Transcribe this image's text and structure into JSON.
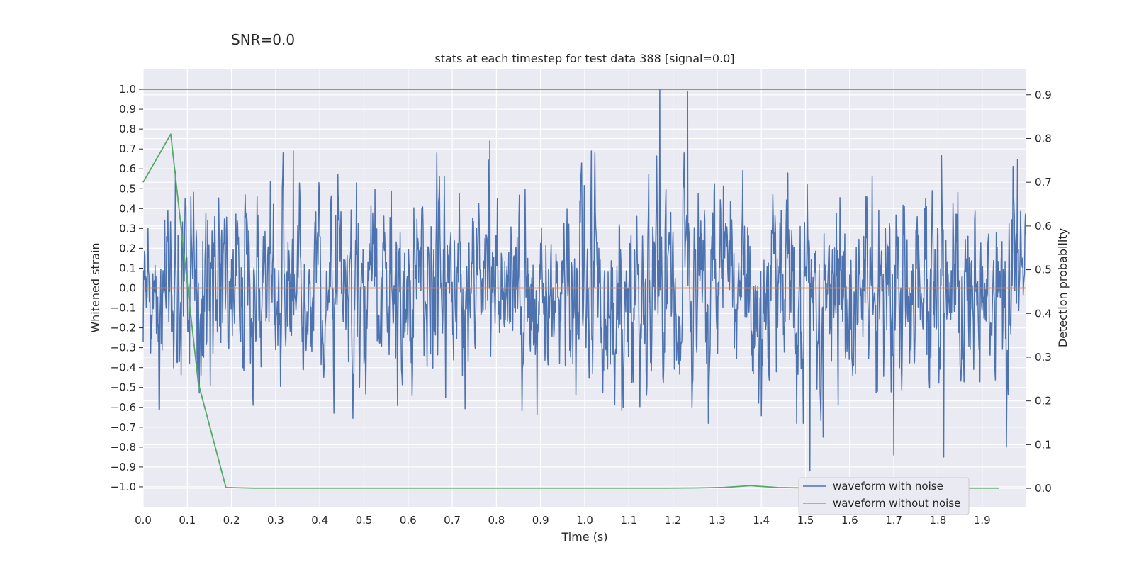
{
  "suptitle": "SNR=0.0",
  "chart_data": {
    "type": "line",
    "title": "stats at each timestep for test data 388 [signal=0.0]",
    "xlabel": "Time (s)",
    "ylabel": "Whitened strain",
    "y2label": "Detection probability",
    "xlim": [
      0.0,
      2.0
    ],
    "ylim": [
      -1.1,
      1.1
    ],
    "y2lim": [
      -0.042,
      0.958
    ],
    "xticks": [
      0.0,
      0.1,
      0.2,
      0.3,
      0.4,
      0.5,
      0.6,
      0.7,
      0.8,
      0.9,
      1.0,
      1.1,
      1.2,
      1.3,
      1.4,
      1.5,
      1.6,
      1.7,
      1.8,
      1.9
    ],
    "xtick_labels": [
      "0.0",
      "0.1",
      "0.2",
      "0.3",
      "0.4",
      "0.5",
      "0.6",
      "0.7",
      "0.8",
      "0.9",
      "1.0",
      "1.1",
      "1.2",
      "1.3",
      "1.4",
      "1.5",
      "1.6",
      "1.7",
      "1.8",
      "1.9"
    ],
    "yticks": [
      1.0,
      0.9,
      0.8,
      0.7,
      0.6,
      0.5,
      0.4,
      0.3,
      0.2,
      0.1,
      0.0,
      -0.1,
      -0.2,
      -0.3,
      -0.4,
      -0.5,
      -0.6,
      -0.7,
      -0.8,
      -0.9,
      -1.0
    ],
    "ytick_labels": [
      "1.0",
      "0.9",
      "0.8",
      "0.7",
      "0.6",
      "0.5",
      "0.4",
      "0.3",
      "0.2",
      "0.1",
      "0.0",
      "−0.1",
      "−0.2",
      "−0.3",
      "−0.4",
      "−0.5",
      "−0.6",
      "−0.7",
      "−0.8",
      "−0.9",
      "−1.0"
    ],
    "y2ticks": [
      0.9,
      0.8,
      0.7,
      0.6,
      0.5,
      0.4,
      0.3,
      0.2,
      0.1,
      0.0
    ],
    "y2tick_labels": [
      "0.9",
      "0.8",
      "0.7",
      "0.6",
      "0.5",
      "0.4",
      "0.3",
      "0.2",
      "0.1",
      "0.0"
    ],
    "grid": true,
    "legend_position": "lower-right",
    "colors": {
      "background": "#eaeaf2",
      "grid": "#ffffff",
      "noise": "#4c72b0",
      "clean": "#dd8452",
      "probability": "#55a868",
      "threshold": "#c44e52"
    },
    "threshold_line": {
      "y": 1.0
    },
    "series": [
      {
        "name": "waveform with noise",
        "axis": "left",
        "sample_rate": 1000,
        "x_start": 0.0,
        "x_end": 1.999,
        "y_extremes": {
          "min": -0.92,
          "max": 1.0
        },
        "noted_peaks": [
          {
            "x": 1.17,
            "y": 1.0
          },
          {
            "x": 1.233,
            "y": 0.99
          },
          {
            "x": 0.785,
            "y": 0.74
          },
          {
            "x": 1.955,
            "y": 0.74
          },
          {
            "x": 0.34,
            "y": 0.69
          },
          {
            "x": 1.015,
            "y": 0.69
          },
          {
            "x": 1.51,
            "y": -0.92
          },
          {
            "x": 1.813,
            "y": -0.85
          },
          {
            "x": 1.7,
            "y": -0.84
          },
          {
            "x": 1.955,
            "y": -0.8
          },
          {
            "x": 1.54,
            "y": -0.75
          }
        ]
      },
      {
        "name": "waveform without noise",
        "axis": "left",
        "x": [
          0.0,
          1.999
        ],
        "y": [
          0.0,
          0.0
        ]
      },
      {
        "name": "",
        "axis": "right",
        "x": [
          0.0,
          0.0625,
          0.125,
          0.1875,
          0.25,
          0.3125,
          0.375,
          0.4375,
          0.5,
          0.5625,
          0.625,
          0.6875,
          0.75,
          0.8125,
          0.875,
          0.9375,
          1.0,
          1.0625,
          1.125,
          1.1875,
          1.25,
          1.3125,
          1.375,
          1.4375,
          1.5,
          1.5625,
          1.625,
          1.6875,
          1.75,
          1.8125,
          1.875,
          1.9375
        ],
        "y": [
          0.7,
          0.81,
          0.24,
          0.002,
          0.0005,
          0.0005,
          0.0005,
          0.0005,
          0.0005,
          0.0005,
          0.0005,
          0.0005,
          0.0005,
          0.0005,
          0.0005,
          0.0005,
          0.0005,
          0.0005,
          0.0005,
          0.0005,
          0.001,
          0.002,
          0.006,
          0.002,
          0.001,
          0.0005,
          0.0005,
          0.0005,
          0.0005,
          0.0005,
          0.0005,
          0.0005
        ]
      }
    ]
  }
}
